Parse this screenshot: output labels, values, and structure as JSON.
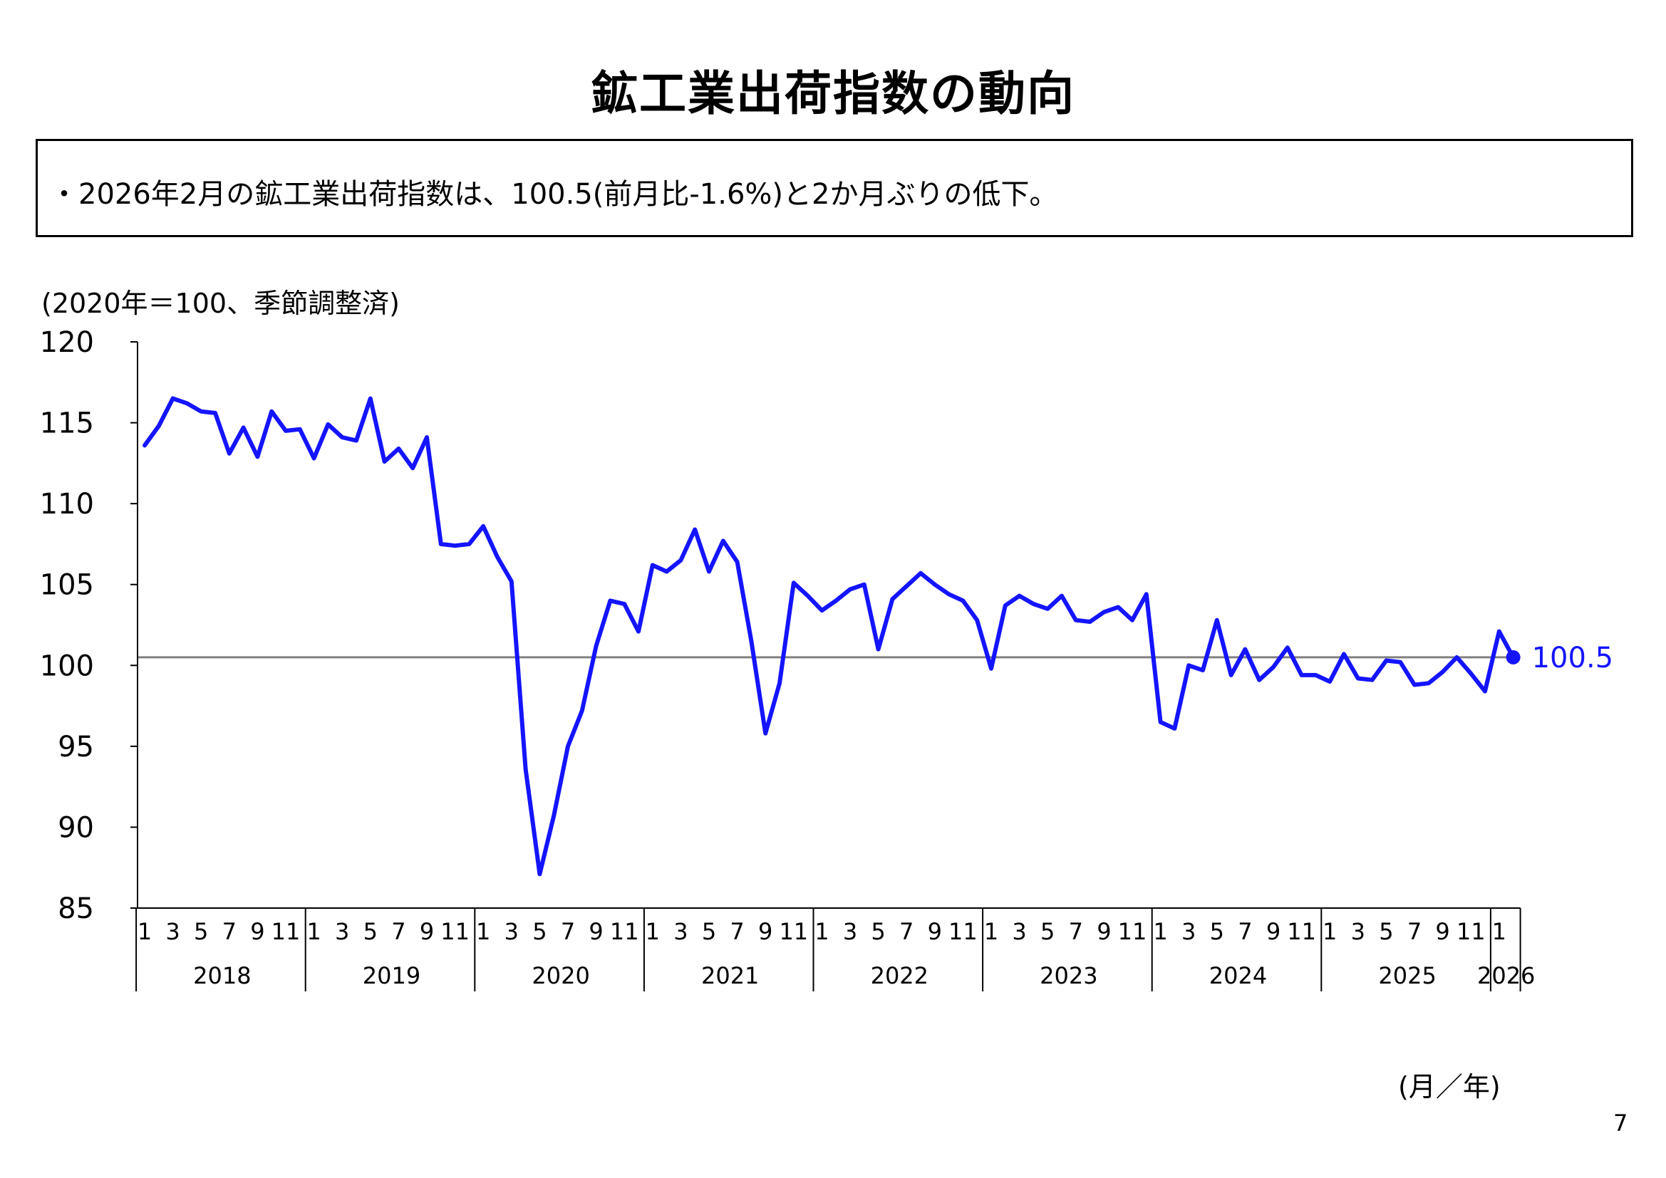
{
  "title": "鉱工業出荷指数の動向",
  "summary": "・2026年2月の鉱工業出荷指数は、100.5(前月比-1.6%)と2か月ぶりの低下。",
  "note": "(2020年＝100、季節調整済)",
  "x_unit": "(月／年)",
  "page_number": "7",
  "colors": {
    "series": "#1414ff",
    "reference_line": "#808080",
    "axis": "#000000"
  },
  "chart_data": {
    "type": "line",
    "title": "",
    "xlabel": "(月／年)",
    "ylabel": "",
    "ylim": [
      85,
      120
    ],
    "yticks": [
      85,
      90,
      95,
      100,
      105,
      110,
      115,
      120
    ],
    "grid": false,
    "month_tick_labels": [
      "1",
      "3",
      "5",
      "7",
      "9",
      "11"
    ],
    "years": [
      "2018",
      "2019",
      "2020",
      "2021",
      "2022",
      "2023",
      "2024",
      "2025",
      "2026"
    ],
    "reference_line": 100.5,
    "last_value_label": "100.5",
    "series": [
      {
        "values": [
          113.6,
          114.8,
          116.5,
          116.2,
          115.7,
          115.6,
          113.1,
          114.7,
          112.9,
          115.7,
          114.5,
          114.6,
          112.8,
          114.9,
          114.1,
          113.9,
          116.5,
          112.6,
          113.4,
          112.2,
          114.1,
          107.5,
          107.4,
          107.5,
          108.6,
          106.7,
          105.2,
          93.6,
          87.1,
          90.7,
          95.0,
          97.2,
          101.2,
          104.0,
          103.8,
          102.1,
          106.2,
          105.8,
          106.5,
          108.4,
          105.8,
          107.7,
          106.4,
          101.5,
          95.8,
          98.9,
          105.1,
          104.3,
          103.4,
          104.0,
          104.7,
          105.0,
          101.0,
          104.1,
          104.9,
          105.7,
          105.0,
          104.4,
          104.0,
          102.8,
          99.8,
          103.7,
          104.3,
          103.8,
          103.5,
          104.3,
          102.8,
          102.7,
          103.3,
          103.6,
          102.8,
          104.4,
          96.5,
          96.1,
          100.0,
          99.7,
          102.8,
          99.4,
          101.0,
          99.1,
          99.9,
          101.1,
          99.4,
          99.4,
          99.0,
          100.7,
          99.2,
          99.1,
          100.3,
          100.2,
          98.8,
          98.9,
          99.6,
          100.5,
          99.5,
          98.4,
          102.1,
          100.5
        ]
      }
    ]
  }
}
